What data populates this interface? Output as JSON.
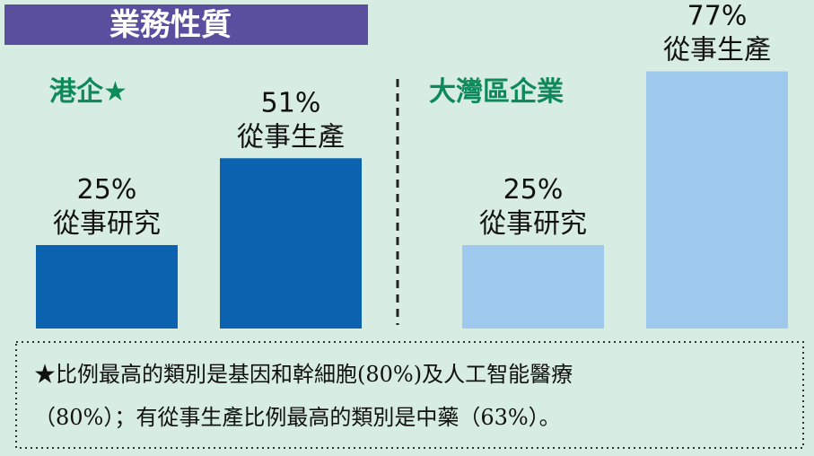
{
  "header": {
    "title": "業務性質"
  },
  "chart_data": [
    {
      "type": "bar",
      "title": "港企★",
      "categories": [
        "從事研究",
        "從事生產"
      ],
      "values": [
        25,
        51
      ],
      "value_labels": [
        "25%",
        "51%"
      ],
      "color": "#0b63b0"
    },
    {
      "type": "bar",
      "title": "大灣區企業",
      "categories": [
        "從事研究",
        "從事生產"
      ],
      "values": [
        25,
        77
      ],
      "value_labels": [
        "25%",
        "77%"
      ],
      "color": "#9ec8ec"
    }
  ],
  "footnote": [
    "★比例最高的類別是基因和幹細胞(80%)及人工智能醫療",
    "（80%）；有從事生產比例最高的類別是中藥（63%）。"
  ]
}
